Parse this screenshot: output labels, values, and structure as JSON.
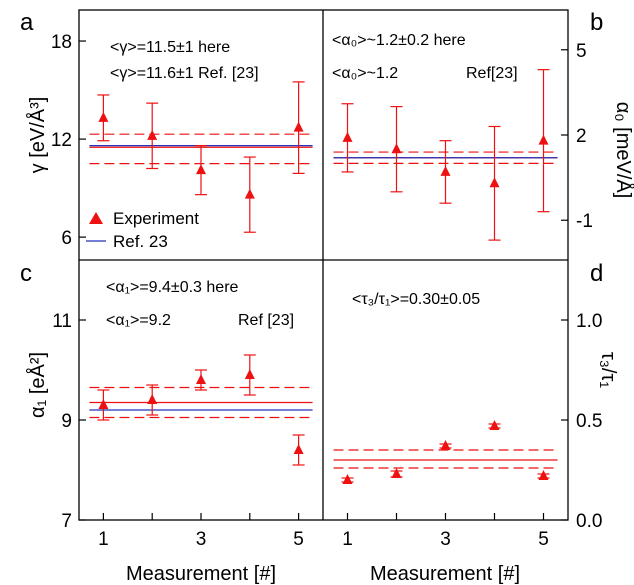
{
  "colors": {
    "experiment": "#ee1111",
    "reference": "#2233bb",
    "axis": "#000000"
  },
  "common": {
    "xlabel": "Measurement [#]",
    "xticks": [
      "1",
      "3",
      "5"
    ]
  },
  "legend": {
    "experiment_label": "Experiment",
    "reference_label": "Ref. 23"
  },
  "chart_data": [
    {
      "panel": "a",
      "type": "scatter",
      "ylabel": "γ [eV/Å³]",
      "xlim": [
        0.5,
        5.5
      ],
      "ylim": [
        4.6,
        19.9
      ],
      "yticks": [
        "6",
        "12",
        "18"
      ],
      "annotations": [
        "<γ>=11.5±1 here",
        "<γ>=11.6±1 Ref. [23]"
      ],
      "series": [
        {
          "name": "Experiment",
          "x": [
            1,
            2,
            3,
            4,
            5
          ],
          "y": [
            13.3,
            12.2,
            10.1,
            8.6,
            12.7
          ],
          "error": [
            1.4,
            2.0,
            1.5,
            2.3,
            2.8
          ]
        }
      ],
      "mean_here": 11.5,
      "band_here": [
        10.5,
        12.3
      ],
      "reference_value": 11.6
    },
    {
      "panel": "b",
      "type": "scatter",
      "ylabel": "α₀ [meV/Å]",
      "xlim": [
        0.5,
        5.5
      ],
      "ylim": [
        -2.4,
        6.4
      ],
      "yticks": [
        "5",
        "2",
        "-1"
      ],
      "annotations": [
        "<α₀>~1.2±0.2 here",
        "<α₀>~1.2",
        "Ref[23]"
      ],
      "series": [
        {
          "name": "Experiment",
          "x": [
            1,
            2,
            3,
            4,
            5
          ],
          "y": [
            1.9,
            1.5,
            0.7,
            0.3,
            1.8
          ],
          "error": [
            1.2,
            1.5,
            1.1,
            2.0,
            2.5
          ]
        }
      ],
      "mean_here": 1.2,
      "band_here": [
        1.0,
        1.4
      ],
      "reference_value": 1.2
    },
    {
      "panel": "c",
      "type": "scatter",
      "ylabel": "α₁ [eÅ²]",
      "xlim": [
        0.5,
        5.5
      ],
      "ylim": [
        7.0,
        12.2
      ],
      "yticks": [
        "11",
        "9",
        "7"
      ],
      "annotations": [
        "<α₁>=9.4±0.3 here",
        "<α₁>=9.2",
        "Ref [23]"
      ],
      "series": [
        {
          "name": "Experiment",
          "x": [
            1,
            2,
            3,
            4,
            5
          ],
          "y": [
            9.3,
            9.4,
            9.8,
            9.9,
            8.4
          ],
          "error": [
            0.3,
            0.3,
            0.2,
            0.4,
            0.3
          ]
        }
      ],
      "mean_here": 9.35,
      "band_here": [
        9.05,
        9.65
      ],
      "reference_value": 9.2
    },
    {
      "panel": "d",
      "type": "scatter",
      "ylabel": "τ₃/τ₁",
      "xlim": [
        0.5,
        5.5
      ],
      "ylim": [
        0.0,
        1.3
      ],
      "yticks": [
        "1.0",
        "0.5",
        "0.0"
      ],
      "annotations": [
        "<τ₃/τ₁>=0.30±0.05"
      ],
      "series": [
        {
          "name": "Experiment",
          "x": [
            1,
            2,
            3,
            4,
            5
          ],
          "y": [
            0.2,
            0.23,
            0.37,
            0.47,
            0.22
          ],
          "error": [
            0.01,
            0.015,
            0.01,
            0.01,
            0.01
          ]
        }
      ],
      "mean_here": 0.3,
      "band_here": [
        0.26,
        0.35
      ]
    }
  ]
}
